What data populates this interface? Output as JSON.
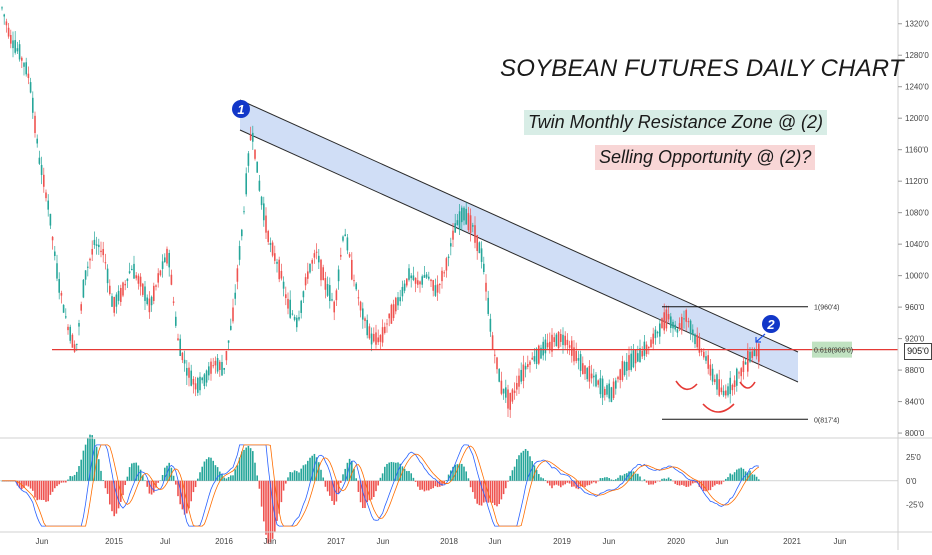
{
  "header": {
    "title": "SOYBEAN FUTURES DAILY CHART",
    "note_resistance": "Twin Monthly Resistance Zone @ (2)",
    "note_selling": "Selling Opportunity @ (2)?"
  },
  "markers": {
    "one": "1",
    "two": "2"
  },
  "colors": {
    "up": "#26a69a",
    "down": "#ef5350",
    "channel_fill": "#c8d8f5",
    "channel_line": "#2a2a2a",
    "hline": "#e53935",
    "fib_label_bg": "#a5d6a7"
  },
  "levels": {
    "fib_1": "1(960'4)",
    "fib_0618": "0.618(906'0)",
    "fib_0": "0(817'4)",
    "last_price": "905'0"
  },
  "chart_data": [
    {
      "type": "candlestick",
      "title": "SOYBEAN FUTURES DAILY CHART",
      "x_ticks": [
        "Jun",
        "2015",
        "Jul",
        "2016",
        "Jun",
        "2017",
        "Jun",
        "2018",
        "Jun",
        "2019",
        "Jun",
        "2020",
        "Jun",
        "2021",
        "Jun"
      ],
      "y_ticks": [
        "1320'0",
        "1280'0",
        "1240'0",
        "1200'0",
        "1160'0",
        "1120'0",
        "1080'0",
        "1040'0",
        "1000'0",
        "960'0",
        "920'0",
        "880'0",
        "840'0",
        "800'0"
      ],
      "ylim": [
        795,
        1340
      ],
      "approx_closes": [
        1340,
        1300,
        1280,
        1250,
        1150,
        1090,
        1000,
        940,
        905,
        1000,
        1040,
        1030,
        960,
        980,
        1010,
        990,
        960,
        1000,
        1030,
        920,
        880,
        860,
        870,
        890,
        880,
        950,
        1060,
        1190,
        1100,
        1040,
        1010,
        960,
        940,
        1000,
        1030,
        990,
        960,
        1060,
        1000,
        950,
        920,
        920,
        950,
        970,
        1000,
        990,
        1000,
        980,
        1010,
        1060,
        1080,
        1060,
        1020,
        920,
        860,
        840,
        870,
        890,
        900,
        910,
        920,
        920,
        900,
        880,
        870,
        855,
        850,
        880,
        890,
        900,
        910,
        930,
        950,
        930,
        950,
        920,
        900,
        870,
        850,
        860,
        880,
        900,
        905
      ],
      "horizontal_levels": [
        {
          "label": "1(960'4)",
          "value": 960.5
        },
        {
          "label": "0.618(906'0)",
          "value": 906
        },
        {
          "label": "0(817'4)",
          "value": 817.5
        }
      ]
    },
    {
      "type": "line",
      "y_ticks": [
        "25'0",
        "0'0",
        "-25'0"
      ],
      "ylim": [
        -50,
        40
      ]
    }
  ]
}
